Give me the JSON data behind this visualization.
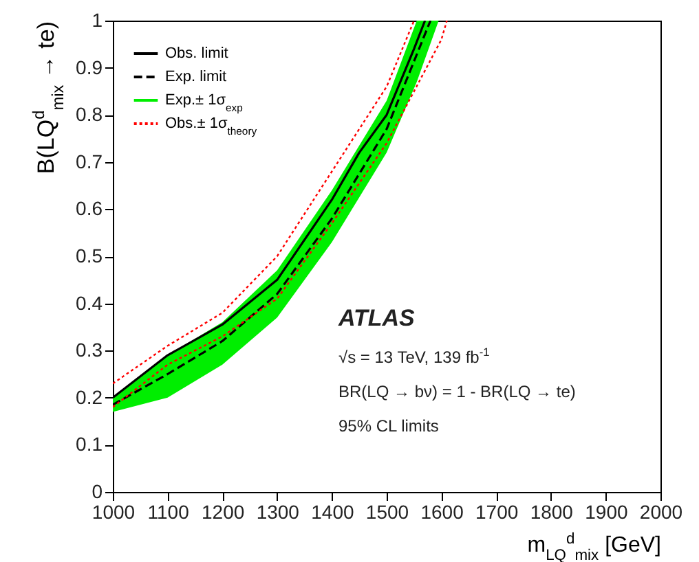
{
  "chart_data": {
    "type": "line",
    "xlabel": "m$_{LQ}$$^{d}$$_{mix}$ [GeV]",
    "ylabel": "B(LQ$^{d}$$_{mix}$ → te)",
    "xlim": [
      1000,
      2000
    ],
    "xticks": [
      1000,
      1100,
      1200,
      1300,
      1400,
      1500,
      1600,
      1700,
      1800,
      1900,
      2000
    ],
    "ylim": [
      0,
      1
    ],
    "yticks": [
      0,
      0.1,
      0.2,
      0.3,
      0.4,
      0.5,
      0.6,
      0.7,
      0.8,
      0.9,
      1
    ],
    "legend": "top left",
    "grid": false,
    "series": [
      {
        "name": "Obs. limit",
        "color": "#000000",
        "line_style": "solid",
        "x": [
          1000,
          1100,
          1200,
          1300,
          1400,
          1450,
          1500,
          1550,
          1570
        ],
        "values": [
          0.2,
          0.29,
          0.355,
          0.45,
          0.62,
          0.72,
          0.8,
          0.94,
          1.0
        ]
      },
      {
        "name": "Exp. limit",
        "color": "#000000",
        "line_style": "dashed",
        "x": [
          1000,
          1100,
          1200,
          1300,
          1400,
          1500,
          1580
        ],
        "values": [
          0.185,
          0.25,
          0.32,
          0.42,
          0.58,
          0.77,
          1.0
        ]
      },
      {
        "type": "area",
        "name": "Exp.± 1σ$_{exp}$",
        "color": "#00ee00",
        "x": [
          1000,
          1100,
          1200,
          1300,
          1400,
          1500,
          1555,
          1595
        ],
        "values": [
          null,
          null,
          null,
          null,
          null,
          null,
          null,
          null
        ],
        "lower": [
          0.17,
          0.2,
          0.27,
          0.37,
          0.53,
          0.72,
          0.87,
          1.0
        ],
        "upper": [
          0.2,
          0.29,
          0.36,
          0.47,
          0.64,
          0.83,
          1.0,
          1.0
        ]
      },
      {
        "name": "Obs.± 1σ$_{theory}$",
        "color": "#ff0000",
        "line_style": "dotted",
        "x": [
          1000,
          1100,
          1200,
          1300,
          1400,
          1500,
          1550
        ],
        "values": [
          0.23,
          0.31,
          0.38,
          0.5,
          0.68,
          0.86,
          1.0
        ]
      },
      {
        "color": "#ff0000",
        "line_style": "dotted",
        "x": [
          1000,
          1100,
          1200,
          1300,
          1400,
          1500,
          1600,
          1610
        ],
        "values": [
          0.18,
          0.27,
          0.33,
          0.41,
          0.57,
          0.74,
          0.96,
          1.0
        ]
      }
    ],
    "annotations": [
      "ATLAS",
      "√s = 13 TeV, 139 fb$^{-1}$",
      "BR(LQ → bν) = 1 - BR(LQ → te)",
      "95% CL limits"
    ]
  }
}
